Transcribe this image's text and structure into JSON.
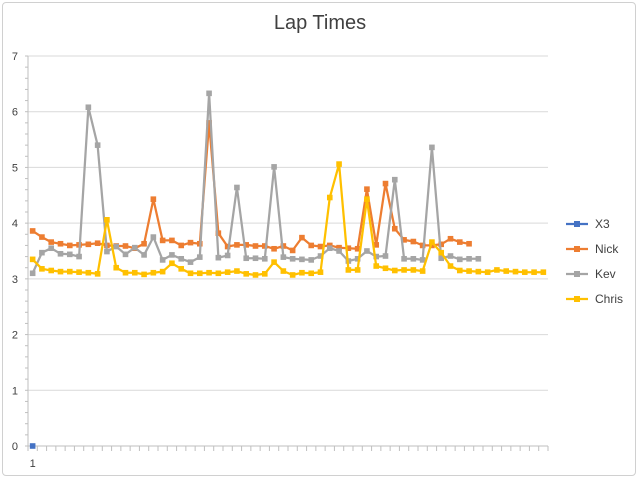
{
  "chart_data": {
    "type": "line",
    "title": "Lap Times",
    "xlabel": "",
    "ylabel": "",
    "ylim": [
      0,
      7
    ],
    "yticks": [
      0,
      1,
      2,
      3,
      4,
      5,
      6,
      7
    ],
    "x_count": 56,
    "x_tick_labels": [
      {
        "index": 1,
        "label": "1"
      }
    ],
    "grid": "horizontal",
    "legend": "right",
    "series": [
      {
        "name": "X3",
        "color": "#4472C4",
        "values": [
          0.0
        ]
      },
      {
        "name": "Nick",
        "color": "#ED7D31",
        "values": [
          3.86,
          3.75,
          3.66,
          3.63,
          3.6,
          3.61,
          3.62,
          3.64,
          3.6,
          3.59,
          3.59,
          3.55,
          3.63,
          4.43,
          3.69,
          3.69,
          3.6,
          3.65,
          3.63,
          5.8,
          3.82,
          3.58,
          3.61,
          3.61,
          3.59,
          3.59,
          3.54,
          3.59,
          3.51,
          3.74,
          3.6,
          3.58,
          3.6,
          3.56,
          3.55,
          3.54,
          4.61,
          3.61,
          4.71,
          3.9,
          3.7,
          3.67,
          3.6,
          3.6,
          3.62,
          3.72,
          3.66,
          3.63
        ]
      },
      {
        "name": "Kev",
        "color": "#A5A5A5",
        "values": [
          3.1,
          3.47,
          3.55,
          3.45,
          3.44,
          3.4,
          6.08,
          5.4,
          3.49,
          3.58,
          3.44,
          3.56,
          3.43,
          3.75,
          3.34,
          3.43,
          3.36,
          3.3,
          3.39,
          6.33,
          3.38,
          3.42,
          4.64,
          3.37,
          3.37,
          3.36,
          5.01,
          3.39,
          3.36,
          3.35,
          3.34,
          3.41,
          3.55,
          3.5,
          3.32,
          3.36,
          3.5,
          3.4,
          3.41,
          4.78,
          3.36,
          3.36,
          3.34,
          5.36,
          3.37,
          3.41,
          3.35,
          3.36,
          3.36
        ]
      },
      {
        "name": "Chris",
        "color": "#FFC000",
        "values": [
          3.35,
          3.18,
          3.15,
          3.13,
          3.13,
          3.12,
          3.11,
          3.09,
          4.06,
          3.2,
          3.11,
          3.11,
          3.08,
          3.11,
          3.13,
          3.28,
          3.18,
          3.1,
          3.1,
          3.11,
          3.1,
          3.12,
          3.14,
          3.09,
          3.07,
          3.09,
          3.3,
          3.14,
          3.07,
          3.11,
          3.1,
          3.12,
          4.46,
          5.06,
          3.16,
          3.16,
          4.43,
          3.23,
          3.19,
          3.15,
          3.16,
          3.16,
          3.14,
          3.66,
          3.47,
          3.23,
          3.15,
          3.14,
          3.13,
          3.12,
          3.16,
          3.14,
          3.13,
          3.12,
          3.12,
          3.12
        ]
      }
    ]
  }
}
